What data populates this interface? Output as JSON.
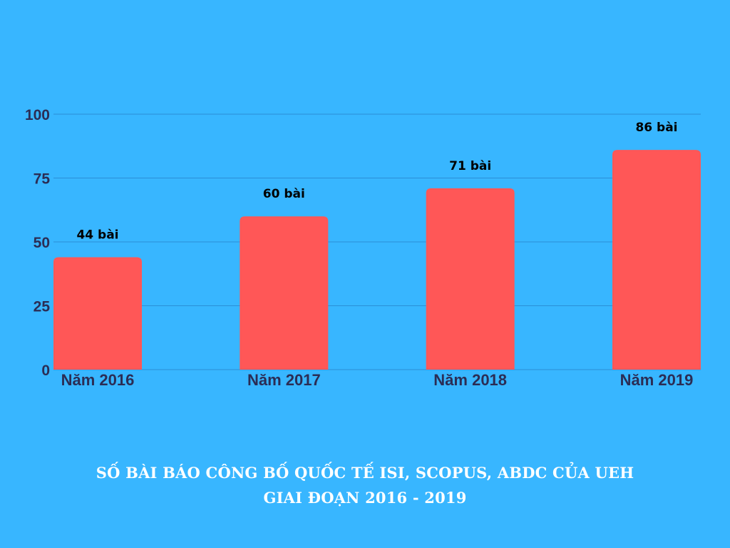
{
  "chart_data": {
    "type": "bar",
    "categories": [
      "Năm 2016",
      "Năm 2017",
      "Năm 2018",
      "Năm 2019"
    ],
    "values": [
      44,
      60,
      71,
      86
    ],
    "data_labels": [
      "44 bài",
      "60 bài",
      "71 bài",
      "86 bài"
    ],
    "ylim": [
      0,
      100
    ],
    "yticks": [
      0,
      25,
      50,
      75,
      100
    ],
    "grid": true,
    "legend": "none",
    "colors": {
      "background": "#38b6ff",
      "bar": "#ff5757",
      "gridline": "#2a8fd6",
      "axis_text": "#2b2d55",
      "data_label": "#000000"
    }
  },
  "caption": {
    "line1": "SỐ BÀI BÁO CÔNG BỐ QUỐC TẾ ISI, SCOPUS, ABDC CỦA UEH",
    "line2": "GIAI ĐOẠN 2016 - 2019"
  }
}
